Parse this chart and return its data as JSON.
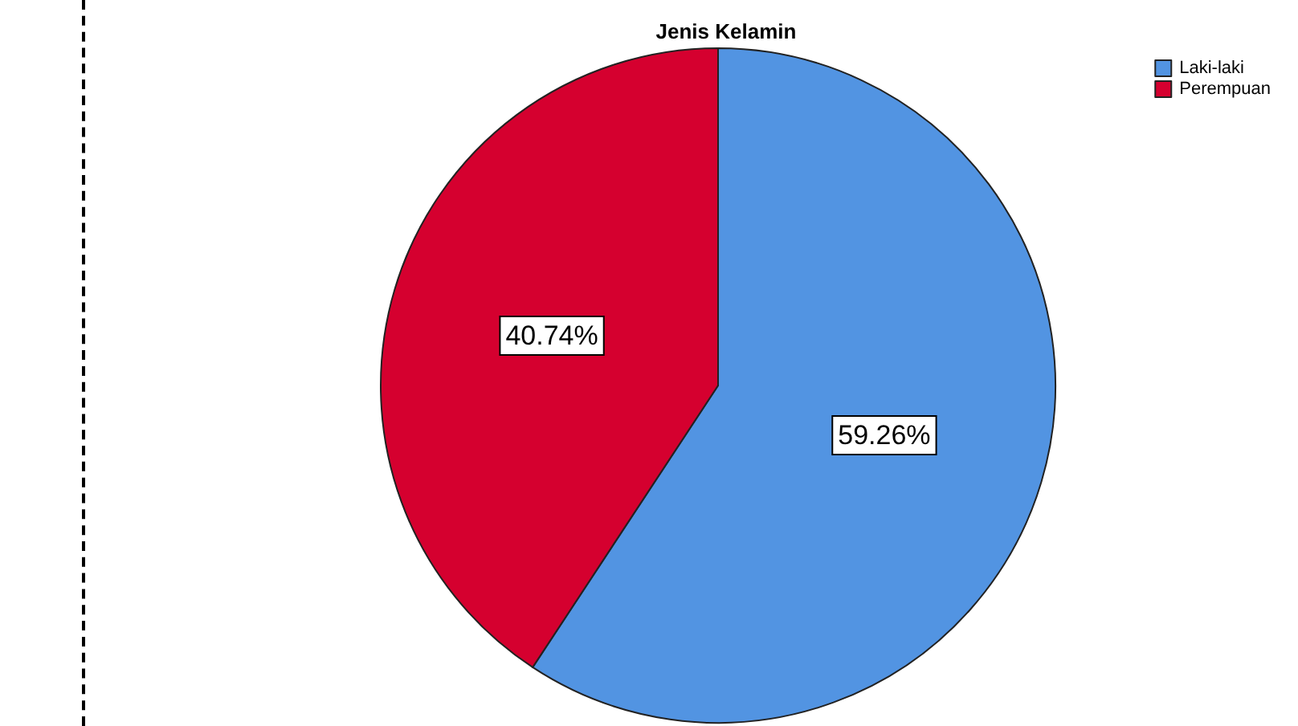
{
  "chart_data": {
    "type": "pie",
    "title": "Jenis Kelamin",
    "categories": [
      "Laki-laki",
      "Perempuan"
    ],
    "values": [
      59.26,
      40.74
    ],
    "value_labels": [
      "59.26%",
      "40.74%"
    ],
    "colors": [
      "#5294e2",
      "#d5002f"
    ],
    "legend": "top right"
  }
}
